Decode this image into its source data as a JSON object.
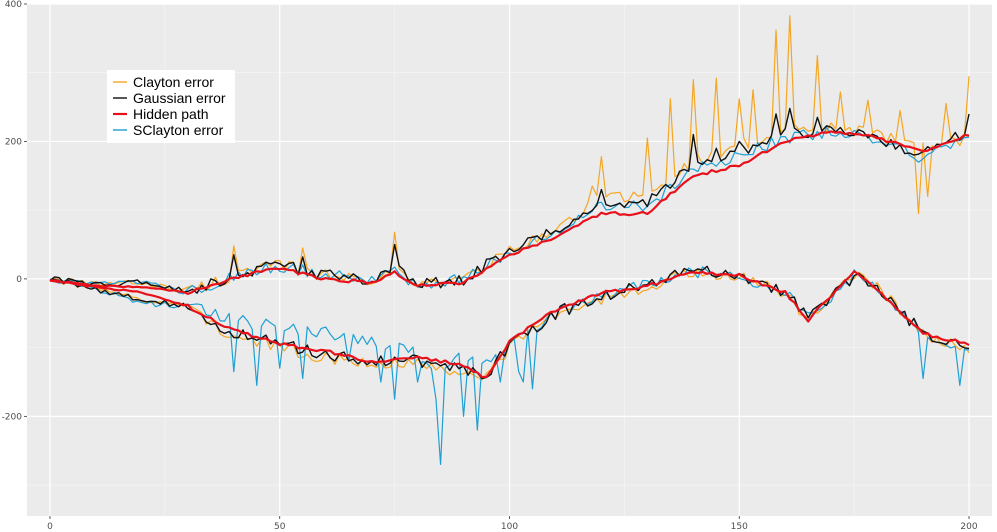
{
  "chart_data": {
    "type": "line",
    "title": "",
    "xlabel": "",
    "ylabel": "",
    "xlim": [
      -5,
      205
    ],
    "ylim": [
      -345,
      400
    ],
    "x_ticks": [
      0,
      50,
      100,
      150,
      200
    ],
    "y_ticks": [
      -200,
      0,
      200,
      400
    ],
    "x_tick_labels": [
      "0",
      "50",
      "100",
      "150",
      "200"
    ],
    "y_tick_labels": [
      "-200",
      "0",
      "200",
      "400"
    ],
    "grid": true,
    "legend_position": "top-left",
    "x": "0..200 step 1",
    "series": [
      {
        "name": "Clayton error",
        "color": "#f5a623",
        "width": 1.2,
        "anchors": [
          [
            0,
            0
          ],
          [
            10,
            -8
          ],
          [
            20,
            -5
          ],
          [
            30,
            -18
          ],
          [
            40,
            5
          ],
          [
            50,
            20
          ],
          [
            60,
            5
          ],
          [
            70,
            0
          ],
          [
            75,
            18
          ],
          [
            80,
            -10
          ],
          [
            90,
            0
          ],
          [
            100,
            40
          ],
          [
            110,
            70
          ],
          [
            120,
            120
          ],
          [
            130,
            120
          ],
          [
            140,
            170
          ],
          [
            150,
            195
          ],
          [
            160,
            215
          ],
          [
            170,
            220
          ],
          [
            180,
            210
          ],
          [
            190,
            190
          ],
          [
            200,
            205
          ]
        ],
        "peaks": [
          [
            40,
            48
          ],
          [
            55,
            45
          ],
          [
            75,
            68
          ],
          [
            117,
            110
          ],
          [
            118,
            135
          ],
          [
            120,
            178
          ],
          [
            130,
            205
          ],
          [
            135,
            262
          ],
          [
            140,
            290
          ],
          [
            145,
            292
          ],
          [
            150,
            262
          ],
          [
            153,
            275
          ],
          [
            158,
            362
          ],
          [
            161,
            383
          ],
          [
            167,
            325
          ],
          [
            172,
            272
          ],
          [
            178,
            260
          ],
          [
            185,
            245
          ],
          [
            189,
            95
          ],
          [
            191,
            120
          ],
          [
            195,
            255
          ],
          [
            200,
            295
          ]
        ]
      },
      {
        "name": "Clayton error",
        "color": "#f5a623",
        "width": 1.2,
        "anchors": [
          [
            0,
            0
          ],
          [
            10,
            -15
          ],
          [
            20,
            -30
          ],
          [
            30,
            -40
          ],
          [
            40,
            -85
          ],
          [
            50,
            -100
          ],
          [
            60,
            -115
          ],
          [
            70,
            -120
          ],
          [
            80,
            -125
          ],
          [
            90,
            -135
          ],
          [
            95,
            -140
          ],
          [
            100,
            -100
          ],
          [
            110,
            -50
          ],
          [
            120,
            -30
          ],
          [
            130,
            -10
          ],
          [
            140,
            10
          ],
          [
            150,
            5
          ],
          [
            160,
            -20
          ],
          [
            165,
            -60
          ],
          [
            175,
            5
          ],
          [
            180,
            -10
          ],
          [
            190,
            -80
          ],
          [
            200,
            -100
          ]
        ],
        "peaks": []
      },
      {
        "name": "Gaussian error",
        "color": "#111111",
        "width": 1.4,
        "anchors": [
          [
            0,
            0
          ],
          [
            10,
            -8
          ],
          [
            20,
            -5
          ],
          [
            30,
            -18
          ],
          [
            40,
            5
          ],
          [
            50,
            20
          ],
          [
            60,
            5
          ],
          [
            70,
            0
          ],
          [
            75,
            18
          ],
          [
            80,
            -10
          ],
          [
            90,
            0
          ],
          [
            100,
            40
          ],
          [
            110,
            70
          ],
          [
            120,
            110
          ],
          [
            130,
            110
          ],
          [
            140,
            165
          ],
          [
            150,
            185
          ],
          [
            160,
            210
          ],
          [
            170,
            218
          ],
          [
            180,
            205
          ],
          [
            190,
            180
          ],
          [
            200,
            215
          ]
        ],
        "peaks": [
          [
            40,
            35
          ],
          [
            55,
            32
          ],
          [
            75,
            50
          ],
          [
            120,
            130
          ],
          [
            140,
            210
          ],
          [
            145,
            190
          ],
          [
            150,
            200
          ],
          [
            158,
            240
          ],
          [
            161,
            248
          ],
          [
            167,
            235
          ],
          [
            200,
            240
          ]
        ]
      },
      {
        "name": "Gaussian error",
        "color": "#111111",
        "width": 1.4,
        "anchors": [
          [
            0,
            0
          ],
          [
            10,
            -15
          ],
          [
            20,
            -30
          ],
          [
            30,
            -40
          ],
          [
            40,
            -80
          ],
          [
            50,
            -95
          ],
          [
            60,
            -110
          ],
          [
            70,
            -118
          ],
          [
            80,
            -120
          ],
          [
            90,
            -130
          ],
          [
            95,
            -140
          ],
          [
            100,
            -95
          ],
          [
            110,
            -50
          ],
          [
            120,
            -25
          ],
          [
            130,
            -5
          ],
          [
            140,
            15
          ],
          [
            150,
            5
          ],
          [
            160,
            -20
          ],
          [
            165,
            -55
          ],
          [
            175,
            5
          ],
          [
            180,
            -10
          ],
          [
            190,
            -80
          ],
          [
            200,
            -95
          ]
        ],
        "peaks": []
      },
      {
        "name": "Hidden path",
        "color": "#e8111b",
        "width": 2.2,
        "anchors": [
          [
            0,
            -2
          ],
          [
            10,
            -10
          ],
          [
            20,
            -12
          ],
          [
            30,
            -20
          ],
          [
            40,
            2
          ],
          [
            50,
            15
          ],
          [
            60,
            0
          ],
          [
            70,
            -5
          ],
          [
            75,
            10
          ],
          [
            80,
            -10
          ],
          [
            90,
            -5
          ],
          [
            100,
            35
          ],
          [
            110,
            60
          ],
          [
            120,
            95
          ],
          [
            130,
            95
          ],
          [
            140,
            150
          ],
          [
            150,
            165
          ],
          [
            160,
            200
          ],
          [
            170,
            215
          ],
          [
            180,
            205
          ],
          [
            190,
            185
          ],
          [
            200,
            210
          ]
        ],
        "peaks": []
      },
      {
        "name": "Hidden path",
        "color": "#e8111b",
        "width": 2.2,
        "anchors": [
          [
            0,
            -2
          ],
          [
            10,
            -12
          ],
          [
            20,
            -20
          ],
          [
            30,
            -40
          ],
          [
            40,
            -75
          ],
          [
            50,
            -95
          ],
          [
            60,
            -105
          ],
          [
            70,
            -120
          ],
          [
            80,
            -115
          ],
          [
            90,
            -125
          ],
          [
            95,
            -145
          ],
          [
            100,
            -90
          ],
          [
            110,
            -45
          ],
          [
            120,
            -20
          ],
          [
            130,
            -10
          ],
          [
            140,
            10
          ],
          [
            150,
            5
          ],
          [
            160,
            -20
          ],
          [
            165,
            -60
          ],
          [
            175,
            10
          ],
          [
            180,
            -15
          ],
          [
            190,
            -80
          ],
          [
            200,
            -95
          ]
        ],
        "peaks": []
      },
      {
        "name": "SClayton error",
        "color": "#1ea0d5",
        "width": 1.2,
        "anchors": [
          [
            0,
            0
          ],
          [
            10,
            -8
          ],
          [
            20,
            -5
          ],
          [
            30,
            -20
          ],
          [
            40,
            5
          ],
          [
            50,
            18
          ],
          [
            60,
            5
          ],
          [
            70,
            0
          ],
          [
            75,
            15
          ],
          [
            80,
            -10
          ],
          [
            90,
            0
          ],
          [
            100,
            40
          ],
          [
            110,
            70
          ],
          [
            120,
            105
          ],
          [
            130,
            105
          ],
          [
            140,
            160
          ],
          [
            150,
            180
          ],
          [
            160,
            205
          ],
          [
            170,
            215
          ],
          [
            180,
            205
          ],
          [
            190,
            175
          ],
          [
            200,
            210
          ]
        ],
        "peaks": []
      },
      {
        "name": "SClayton error",
        "color": "#1ea0d5",
        "width": 1.2,
        "anchors": [
          [
            0,
            0
          ],
          [
            10,
            -15
          ],
          [
            20,
            -35
          ],
          [
            30,
            -40
          ],
          [
            40,
            -60
          ],
          [
            50,
            -70
          ],
          [
            60,
            -80
          ],
          [
            70,
            -90
          ],
          [
            80,
            -110
          ],
          [
            85,
            -130
          ],
          [
            90,
            -110
          ],
          [
            95,
            -120
          ],
          [
            100,
            -90
          ],
          [
            110,
            -50
          ],
          [
            120,
            -25
          ],
          [
            130,
            -5
          ],
          [
            140,
            10
          ],
          [
            150,
            5
          ],
          [
            160,
            -20
          ],
          [
            165,
            -55
          ],
          [
            175,
            5
          ],
          [
            180,
            -10
          ],
          [
            190,
            -80
          ],
          [
            200,
            -100
          ]
        ],
        "peaks": [
          [
            40,
            -135
          ],
          [
            45,
            -155
          ],
          [
            50,
            -130
          ],
          [
            55,
            -145
          ],
          [
            60,
            -70
          ],
          [
            65,
            -120
          ],
          [
            72,
            -150
          ],
          [
            75,
            -175
          ],
          [
            80,
            -150
          ],
          [
            84,
            -175
          ],
          [
            85,
            -270
          ],
          [
            90,
            -200
          ],
          [
            93,
            -220
          ],
          [
            98,
            -150
          ],
          [
            102,
            -135
          ],
          [
            103,
            -150
          ],
          [
            105,
            -160
          ],
          [
            190,
            -145
          ],
          [
            198,
            -155
          ]
        ]
      }
    ],
    "legend": [
      {
        "label": "Clayton error",
        "color": "#f5a623"
      },
      {
        "label": "Gaussian error",
        "color": "#111111"
      },
      {
        "label": "Hidden path",
        "color": "#e8111b"
      },
      {
        "label": "SClayton error",
        "color": "#1ea0d5"
      }
    ]
  }
}
